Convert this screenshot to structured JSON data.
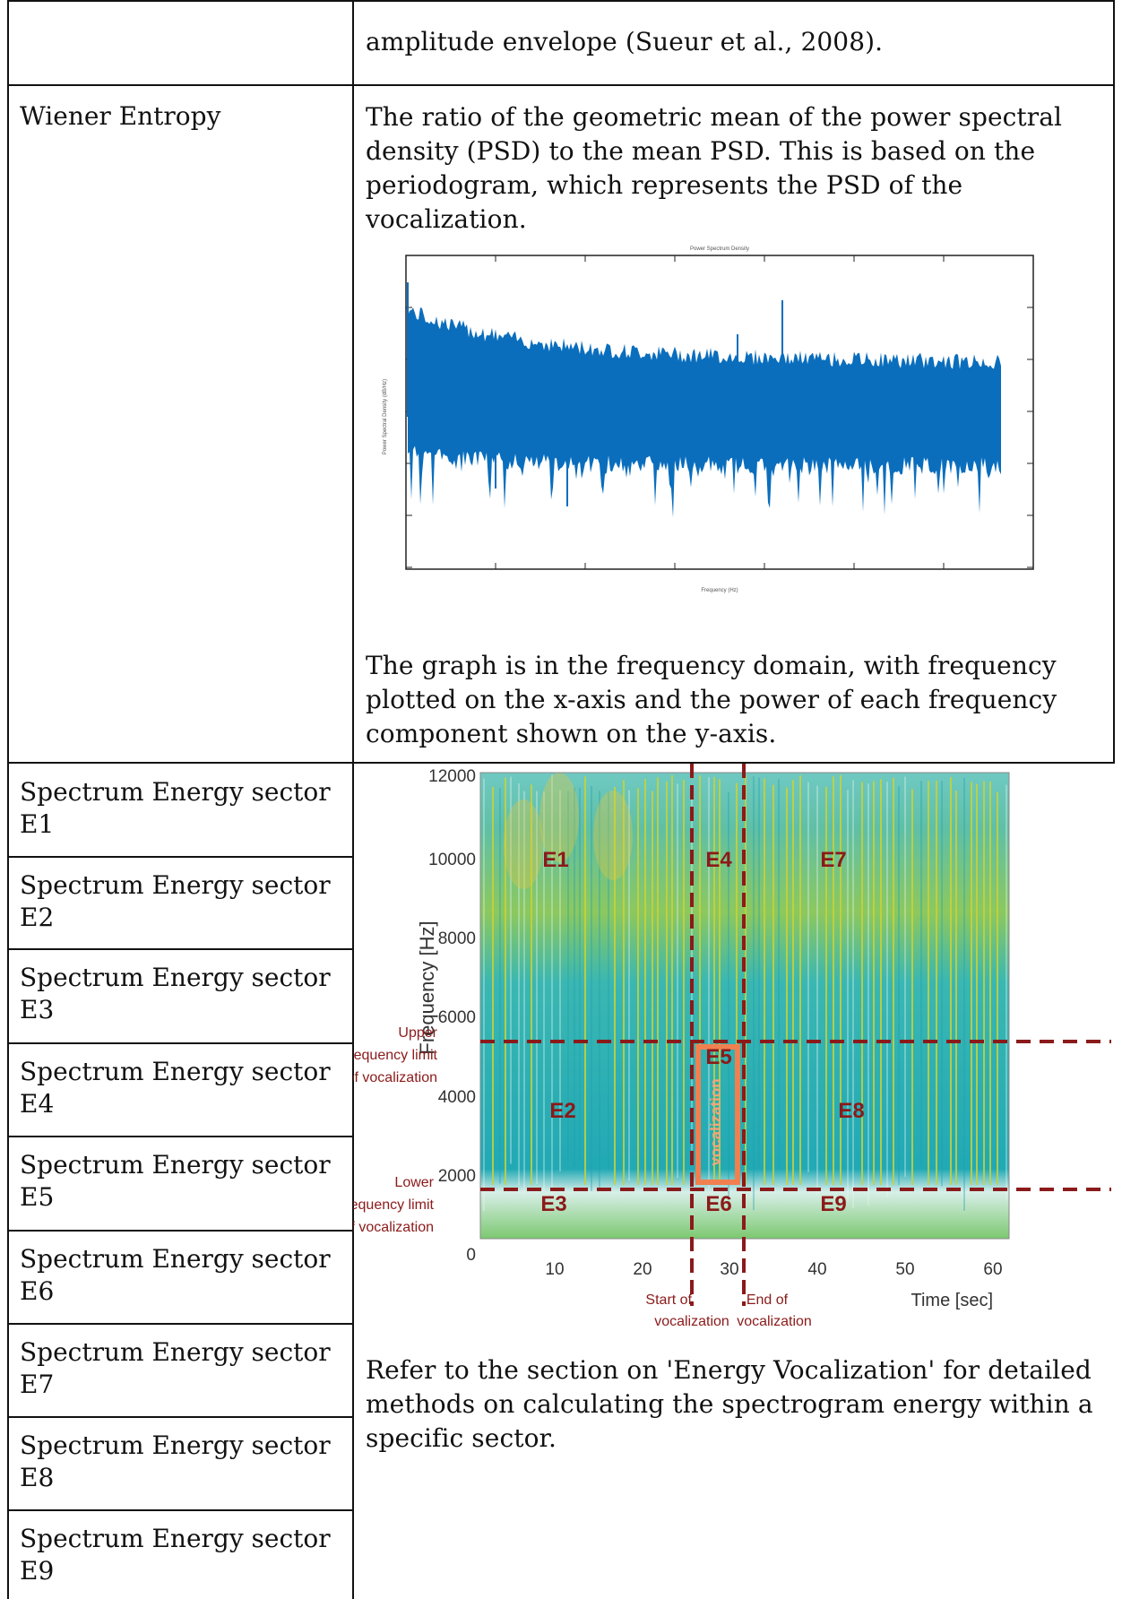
{
  "row_amplitude": {
    "label": "",
    "description_tail": "amplitude envelope (Sueur et al., 2008)."
  },
  "row_wiener": {
    "label": "Wiener Entropy",
    "description": "The ratio of the geometric mean of the power spectral density (PSD) to the mean PSD. This is based on the periodogram, which represents the PSD of the vocalization.",
    "caption": "The graph is in the frequency domain, with frequency plotted on the x-axis and the power of each frequency component shown on the y-axis.",
    "figure": {
      "title": "Power Spectrum Density",
      "xlabel": "Frequency (Hz)",
      "ylabel": "Power Spectral Density (dB/Hz)"
    }
  },
  "row_spectrum": {
    "labels": [
      "Spectrum Energy sector E1",
      "Spectrum Energy sector E2",
      "Spectrum Energy sector E3",
      "Spectrum Energy sector E4",
      "Spectrum Energy sector E5",
      "Spectrum Energy sector E6",
      "Spectrum Energy sector E7",
      "Spectrum Energy sector E8",
      "Spectrum Energy sector E9"
    ],
    "note": "Refer to the section on 'Energy Vocalization' for detailed methods on calculating the spectrogram energy within a specific sector.",
    "spectrogram": {
      "ylabel": "Frequency [Hz]",
      "xlabel": "Time [sec]",
      "y_ticks": [
        "12000",
        "10000",
        "8000",
        "6000",
        "4000",
        "2000",
        "0"
      ],
      "x_ticks": [
        "10",
        "20",
        "30",
        "40",
        "50",
        "60"
      ],
      "sectors": [
        "E1",
        "E2",
        "E3",
        "E4",
        "E5",
        "E6",
        "E7",
        "E8",
        "E9"
      ],
      "vocalization_label": "vocalization",
      "upper_limit_label": [
        "Upper",
        "frequency limit",
        "of vocalization"
      ],
      "lower_limit_label": [
        "Lower",
        "frequency limit",
        "of vocalization"
      ],
      "start_label": [
        "Start of",
        "vocalization"
      ],
      "end_label": [
        "End of",
        "vocalization"
      ],
      "colors": {
        "annotation": "#8b1a1a",
        "box": "#f08050",
        "plot_blue": "#0a6ebd"
      }
    }
  }
}
